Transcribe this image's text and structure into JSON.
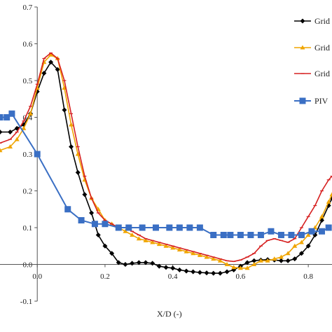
{
  "chart_data": {
    "type": "line",
    "xlabel": "X/D (-)",
    "ylabel": "",
    "xlim": [
      -0.11,
      0.87
    ],
    "ylim": [
      -0.1,
      0.7
    ],
    "x_ticks": [
      "0.0",
      "0.2",
      "0.4",
      "0.6",
      "0.8"
    ],
    "y_ticks": [
      "-0.1",
      "0.0",
      "0.1",
      "0.2",
      "0.3",
      "0.4",
      "0.5",
      "0.6",
      "0.7"
    ],
    "grid": false,
    "legend_position": "right",
    "series": [
      {
        "name": "Grid",
        "color": "#000000",
        "marker": "diamond",
        "x": [
          -0.11,
          -0.08,
          -0.06,
          -0.04,
          -0.02,
          0.0,
          0.02,
          0.04,
          0.06,
          0.08,
          0.1,
          0.12,
          0.14,
          0.16,
          0.18,
          0.2,
          0.22,
          0.24,
          0.26,
          0.28,
          0.3,
          0.32,
          0.34,
          0.36,
          0.38,
          0.4,
          0.42,
          0.44,
          0.46,
          0.48,
          0.5,
          0.52,
          0.54,
          0.56,
          0.58,
          0.6,
          0.62,
          0.64,
          0.66,
          0.68,
          0.7,
          0.72,
          0.74,
          0.76,
          0.78,
          0.8,
          0.82,
          0.84,
          0.86,
          0.87
        ],
        "y": [
          0.36,
          0.36,
          0.37,
          0.38,
          0.41,
          0.47,
          0.52,
          0.55,
          0.53,
          0.42,
          0.32,
          0.25,
          0.19,
          0.14,
          0.08,
          0.05,
          0.03,
          0.005,
          0.0,
          0.003,
          0.005,
          0.005,
          0.003,
          -0.005,
          -0.008,
          -0.01,
          -0.015,
          -0.018,
          -0.02,
          -0.022,
          -0.023,
          -0.024,
          -0.024,
          -0.02,
          -0.015,
          -0.005,
          0.005,
          0.01,
          0.012,
          0.013,
          0.012,
          0.01,
          0.01,
          0.015,
          0.03,
          0.05,
          0.08,
          0.12,
          0.16,
          0.18
        ]
      },
      {
        "name": "Grid",
        "color": "#f0a500",
        "marker": "triangle",
        "x": [
          -0.11,
          -0.08,
          -0.06,
          -0.04,
          -0.02,
          0.0,
          0.02,
          0.04,
          0.06,
          0.08,
          0.1,
          0.12,
          0.14,
          0.16,
          0.18,
          0.2,
          0.22,
          0.24,
          0.26,
          0.28,
          0.3,
          0.32,
          0.34,
          0.36,
          0.38,
          0.4,
          0.42,
          0.44,
          0.46,
          0.48,
          0.5,
          0.52,
          0.54,
          0.56,
          0.58,
          0.6,
          0.62,
          0.64,
          0.66,
          0.68,
          0.7,
          0.72,
          0.74,
          0.76,
          0.78,
          0.8,
          0.82,
          0.84,
          0.86,
          0.87
        ],
        "y": [
          0.31,
          0.32,
          0.34,
          0.37,
          0.41,
          0.48,
          0.55,
          0.57,
          0.56,
          0.48,
          0.38,
          0.3,
          0.23,
          0.18,
          0.15,
          0.12,
          0.11,
          0.1,
          0.09,
          0.08,
          0.07,
          0.065,
          0.06,
          0.055,
          0.05,
          0.045,
          0.04,
          0.035,
          0.03,
          0.025,
          0.02,
          0.015,
          0.01,
          0.0,
          -0.008,
          -0.01,
          -0.01,
          0.0,
          0.01,
          0.01,
          0.015,
          0.02,
          0.03,
          0.05,
          0.06,
          0.08,
          0.1,
          0.13,
          0.17,
          0.19
        ]
      },
      {
        "name": "Grid",
        "color": "#d62020",
        "marker": "dash",
        "x": [
          -0.11,
          -0.08,
          -0.06,
          -0.04,
          -0.02,
          0.0,
          0.02,
          0.04,
          0.06,
          0.08,
          0.1,
          0.12,
          0.14,
          0.16,
          0.18,
          0.2,
          0.22,
          0.24,
          0.26,
          0.28,
          0.3,
          0.32,
          0.34,
          0.36,
          0.38,
          0.4,
          0.42,
          0.44,
          0.46,
          0.48,
          0.5,
          0.52,
          0.54,
          0.56,
          0.58,
          0.6,
          0.62,
          0.64,
          0.66,
          0.68,
          0.7,
          0.72,
          0.74,
          0.76,
          0.78,
          0.8,
          0.82,
          0.84,
          0.86,
          0.87
        ],
        "y": [
          0.33,
          0.34,
          0.36,
          0.39,
          0.43,
          0.49,
          0.56,
          0.575,
          0.56,
          0.5,
          0.41,
          0.32,
          0.24,
          0.18,
          0.14,
          0.12,
          0.11,
          0.1,
          0.1,
          0.09,
          0.08,
          0.07,
          0.065,
          0.06,
          0.055,
          0.05,
          0.045,
          0.04,
          0.035,
          0.03,
          0.025,
          0.02,
          0.015,
          0.01,
          0.008,
          0.012,
          0.02,
          0.03,
          0.05,
          0.065,
          0.07,
          0.065,
          0.06,
          0.07,
          0.1,
          0.13,
          0.16,
          0.2,
          0.23,
          0.24
        ]
      },
      {
        "name": "PIV",
        "color": "#3a6fc4",
        "marker": "square",
        "x": [
          -0.11,
          -0.09,
          -0.075,
          0.0,
          0.09,
          0.13,
          0.17,
          0.2,
          0.24,
          0.27,
          0.31,
          0.35,
          0.39,
          0.42,
          0.45,
          0.48,
          0.52,
          0.55,
          0.57,
          0.6,
          0.63,
          0.66,
          0.69,
          0.72,
          0.75,
          0.78,
          0.81,
          0.84,
          0.86
        ],
        "y": [
          0.4,
          0.4,
          0.41,
          0.3,
          0.15,
          0.12,
          0.11,
          0.11,
          0.1,
          0.1,
          0.1,
          0.1,
          0.1,
          0.1,
          0.1,
          0.1,
          0.08,
          0.08,
          0.08,
          0.08,
          0.08,
          0.08,
          0.09,
          0.08,
          0.08,
          0.08,
          0.09,
          0.09,
          0.1
        ]
      }
    ]
  }
}
